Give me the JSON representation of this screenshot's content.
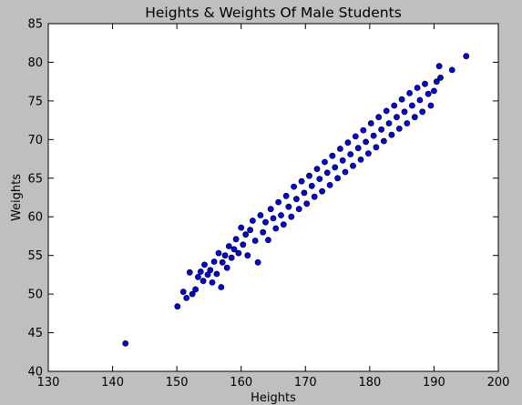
{
  "chart_data": {
    "type": "scatter",
    "title": "Heights & Weights Of Male Students",
    "xlabel": "Heights",
    "ylabel": "Weights",
    "xlim": [
      130,
      200
    ],
    "ylim": [
      40,
      85
    ],
    "xticks": [
      130,
      140,
      150,
      160,
      170,
      180,
      190,
      200
    ],
    "yticks": [
      40,
      45,
      50,
      55,
      60,
      65,
      70,
      75,
      80,
      85
    ],
    "grid": false,
    "legend": "none",
    "marker_color": "#0000ff",
    "marker_edge": "#000000",
    "series": [
      {
        "points": [
          [
            142.0,
            43.6
          ],
          [
            150.1,
            48.4
          ],
          [
            151.0,
            50.3
          ],
          [
            151.5,
            49.5
          ],
          [
            152.0,
            52.8
          ],
          [
            152.4,
            50.0
          ],
          [
            152.9,
            50.6
          ],
          [
            153.3,
            52.2
          ],
          [
            153.7,
            52.9
          ],
          [
            154.1,
            51.7
          ],
          [
            154.3,
            53.8
          ],
          [
            154.8,
            52.5
          ],
          [
            155.2,
            53.1
          ],
          [
            155.5,
            51.5
          ],
          [
            155.8,
            54.2
          ],
          [
            156.2,
            52.6
          ],
          [
            156.5,
            55.3
          ],
          [
            156.9,
            50.9
          ],
          [
            157.1,
            54.1
          ],
          [
            157.5,
            55.0
          ],
          [
            157.8,
            53.4
          ],
          [
            158.1,
            56.2
          ],
          [
            158.5,
            54.7
          ],
          [
            158.9,
            55.8
          ],
          [
            159.2,
            57.1
          ],
          [
            159.6,
            55.3
          ],
          [
            160.0,
            58.6
          ],
          [
            160.3,
            56.4
          ],
          [
            160.7,
            57.7
          ],
          [
            161.0,
            55.0
          ],
          [
            161.4,
            58.3
          ],
          [
            161.8,
            59.5
          ],
          [
            162.2,
            56.9
          ],
          [
            162.6,
            54.1
          ],
          [
            163.0,
            60.2
          ],
          [
            163.4,
            58.0
          ],
          [
            163.8,
            59.3
          ],
          [
            164.2,
            57.0
          ],
          [
            164.6,
            61.0
          ],
          [
            165.0,
            59.8
          ],
          [
            165.4,
            58.5
          ],
          [
            165.8,
            61.9
          ],
          [
            166.2,
            60.2
          ],
          [
            166.6,
            59.0
          ],
          [
            167.0,
            62.7
          ],
          [
            167.4,
            61.3
          ],
          [
            167.8,
            60.0
          ],
          [
            168.2,
            63.9
          ],
          [
            168.6,
            62.3
          ],
          [
            169.0,
            61.0
          ],
          [
            169.4,
            64.6
          ],
          [
            169.8,
            63.1
          ],
          [
            170.2,
            61.7
          ],
          [
            170.6,
            65.3
          ],
          [
            171.0,
            64.0
          ],
          [
            171.4,
            62.6
          ],
          [
            171.8,
            66.2
          ],
          [
            172.2,
            64.9
          ],
          [
            172.6,
            63.3
          ],
          [
            173.0,
            67.1
          ],
          [
            173.4,
            65.7
          ],
          [
            173.8,
            64.1
          ],
          [
            174.2,
            67.9
          ],
          [
            174.6,
            66.4
          ],
          [
            175.0,
            65.0
          ],
          [
            175.4,
            68.8
          ],
          [
            175.8,
            67.3
          ],
          [
            176.2,
            65.8
          ],
          [
            176.6,
            69.6
          ],
          [
            177.0,
            68.1
          ],
          [
            177.4,
            66.6
          ],
          [
            177.8,
            70.4
          ],
          [
            178.2,
            68.9
          ],
          [
            178.6,
            67.4
          ],
          [
            179.0,
            71.2
          ],
          [
            179.4,
            69.7
          ],
          [
            179.8,
            68.2
          ],
          [
            180.2,
            72.1
          ],
          [
            180.6,
            70.5
          ],
          [
            181.0,
            69.0
          ],
          [
            181.4,
            72.9
          ],
          [
            181.8,
            71.3
          ],
          [
            182.2,
            69.8
          ],
          [
            182.6,
            73.7
          ],
          [
            183.0,
            72.1
          ],
          [
            183.4,
            70.6
          ],
          [
            183.8,
            74.4
          ],
          [
            184.2,
            72.9
          ],
          [
            184.6,
            71.4
          ],
          [
            185.0,
            75.2
          ],
          [
            185.4,
            73.6
          ],
          [
            185.8,
            72.1
          ],
          [
            186.2,
            76.0
          ],
          [
            186.6,
            74.4
          ],
          [
            187.0,
            72.9
          ],
          [
            187.4,
            76.7
          ],
          [
            187.8,
            75.1
          ],
          [
            188.2,
            73.6
          ],
          [
            188.6,
            77.2
          ],
          [
            189.1,
            75.9
          ],
          [
            189.5,
            74.4
          ],
          [
            190.0,
            76.3
          ],
          [
            190.4,
            77.5
          ],
          [
            190.8,
            79.5
          ],
          [
            191.0,
            78.0
          ],
          [
            192.8,
            79.0
          ],
          [
            195.0,
            80.8
          ]
        ]
      }
    ]
  }
}
